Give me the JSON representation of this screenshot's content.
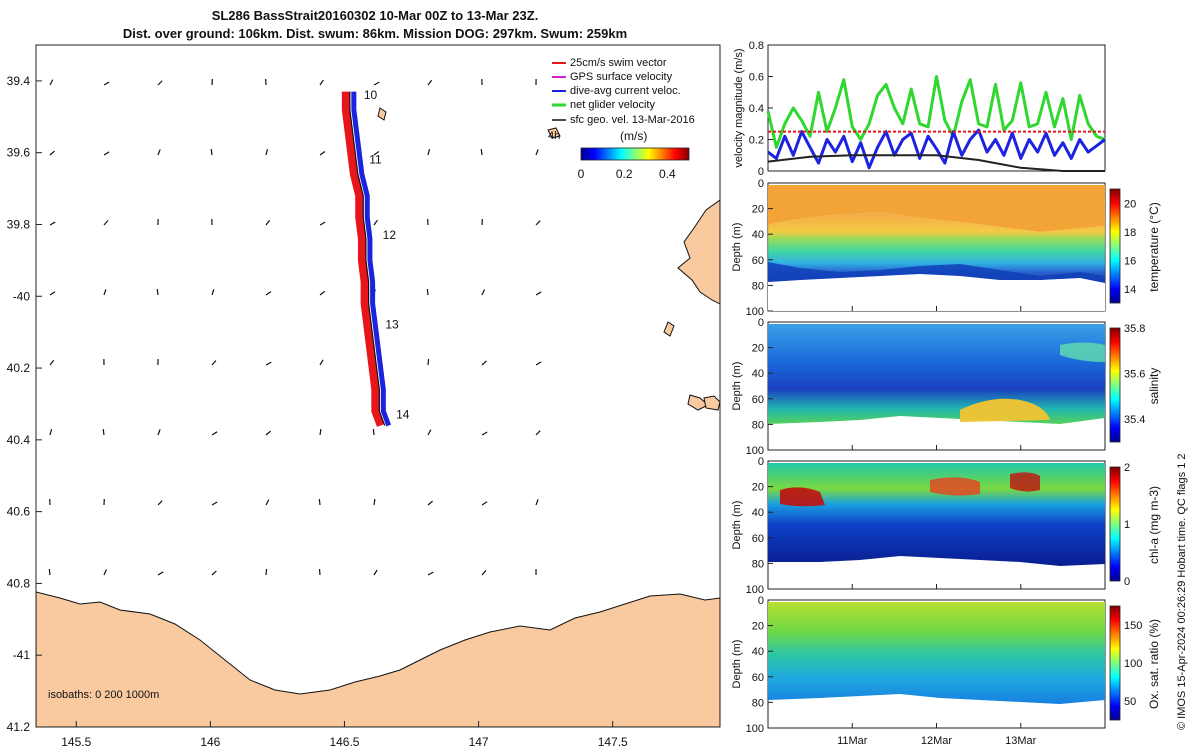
{
  "title_line1": "SL286 BassStrait20160302 10-Mar 00Z to 13-Mar 23Z.",
  "title_line2": "Dist. over ground: 106km. Dist. swum: 86km. Mission DOG: 297km. Swum: 259km",
  "credit": "© IMOS 15-Apr-2024 00:26:29 Hobart time. QC flags 1  2",
  "colors": {
    "land": "#f9c9a0",
    "swim": "#e8151b",
    "gps": "#d81cd8",
    "current": "#1b22e0",
    "net": "#2ed82e",
    "geo": "#111111"
  },
  "chart_data": [
    {
      "type": "map",
      "xlim": [
        145.35,
        147.9
      ],
      "ylim": [
        -41.2,
        -39.3
      ],
      "x_ticks": [
        145.5,
        146,
        146.5,
        147,
        147.5
      ],
      "x_tick_labels": [
        "145.5",
        "146",
        "146.5",
        "147",
        "147.5"
      ],
      "y_ticks": [
        -39.4,
        -39.6,
        -39.8,
        -40,
        -40.2,
        -40.4,
        -40.6,
        -40.8,
        -41,
        -41.2
      ],
      "y_tick_labels": [
        "39.4",
        "39.6",
        "39.8",
        "-40",
        "40.2",
        "40.4",
        "40.6",
        "40.8",
        "-41",
        "41.2"
      ],
      "legend": [
        "25cm/s swim vector",
        "GPS surface velocity",
        "dive-avg current veloc.",
        "net glider velocity",
        "sfc geo. vel. 13-Mar-2016"
      ],
      "legend_placement": "top-right",
      "colorbar_label": "(m/s)",
      "colorbar_ticks": [
        "0",
        "0.2",
        "0.4"
      ],
      "colorbar_range": [
        0,
        0.5
      ],
      "inset_label": "4h",
      "isobaths_label": "isobaths: 0   200  1000m",
      "track_day_labels": [
        {
          "label": "10",
          "lon": 146.55,
          "lat": -39.45
        },
        {
          "label": "11",
          "lon": 146.57,
          "lat": -39.63
        },
        {
          "label": "12",
          "lon": 146.62,
          "lat": -39.84
        },
        {
          "label": "13",
          "lon": 146.63,
          "lat": -40.09
        },
        {
          "label": "14",
          "lon": 146.67,
          "lat": -40.34
        }
      ],
      "track": [
        [
          146.52,
          -39.43
        ],
        [
          146.52,
          -39.48
        ],
        [
          146.53,
          -39.54
        ],
        [
          146.54,
          -39.6
        ],
        [
          146.55,
          -39.66
        ],
        [
          146.57,
          -39.72
        ],
        [
          146.57,
          -39.78
        ],
        [
          146.58,
          -39.84
        ],
        [
          146.58,
          -39.9
        ],
        [
          146.59,
          -39.96
        ],
        [
          146.59,
          -40.02
        ],
        [
          146.6,
          -40.08
        ],
        [
          146.61,
          -40.14
        ],
        [
          146.62,
          -40.2
        ],
        [
          146.63,
          -40.26
        ],
        [
          146.63,
          -40.32
        ],
        [
          146.65,
          -40.36
        ]
      ]
    },
    {
      "type": "line",
      "ylabel": "velocity magnitude (m/s)",
      "ylim": [
        0,
        0.8
      ],
      "y_ticks": [
        "0",
        "0.2",
        "0.4",
        "0.6",
        "0.8"
      ],
      "x_range_days": [
        10.0,
        14.0
      ],
      "series": [
        {
          "color": "#2ed82e",
          "x": [
            10.0,
            10.1,
            10.2,
            10.3,
            10.4,
            10.5,
            10.6,
            10.7,
            10.8,
            10.9,
            11.0,
            11.1,
            11.2,
            11.3,
            11.4,
            11.5,
            11.6,
            11.7,
            11.8,
            11.9,
            12.0,
            12.1,
            12.2,
            12.3,
            12.4,
            12.5,
            12.6,
            12.7,
            12.8,
            12.9,
            13.0,
            13.1,
            13.2,
            13.3,
            13.4,
            13.5,
            13.6,
            13.7,
            13.8,
            13.9,
            14.0
          ],
          "y": [
            0.38,
            0.15,
            0.3,
            0.4,
            0.32,
            0.22,
            0.5,
            0.25,
            0.4,
            0.58,
            0.28,
            0.2,
            0.3,
            0.48,
            0.55,
            0.4,
            0.3,
            0.52,
            0.3,
            0.28,
            0.6,
            0.32,
            0.22,
            0.44,
            0.58,
            0.3,
            0.28,
            0.55,
            0.26,
            0.32,
            0.56,
            0.28,
            0.3,
            0.5,
            0.28,
            0.46,
            0.2,
            0.48,
            0.3,
            0.22,
            0.2
          ]
        },
        {
          "color": "#1b22e0",
          "x": [
            10.0,
            10.1,
            10.2,
            10.3,
            10.4,
            10.5,
            10.6,
            10.7,
            10.8,
            10.9,
            11.0,
            11.1,
            11.2,
            11.3,
            11.4,
            11.5,
            11.6,
            11.7,
            11.8,
            11.9,
            12.0,
            12.1,
            12.2,
            12.3,
            12.4,
            12.5,
            12.6,
            12.7,
            12.8,
            12.9,
            13.0,
            13.1,
            13.2,
            13.3,
            13.4,
            13.5,
            13.6,
            13.7,
            13.8,
            13.9,
            14.0
          ],
          "y": [
            0.12,
            0.08,
            0.22,
            0.1,
            0.25,
            0.15,
            0.05,
            0.2,
            0.12,
            0.22,
            0.06,
            0.18,
            0.02,
            0.15,
            0.25,
            0.1,
            0.2,
            0.24,
            0.08,
            0.22,
            0.14,
            0.05,
            0.25,
            0.1,
            0.2,
            0.26,
            0.12,
            0.2,
            0.1,
            0.24,
            0.08,
            0.2,
            0.12,
            0.24,
            0.1,
            0.18,
            0.08,
            0.2,
            0.12,
            0.16,
            0.2
          ]
        },
        {
          "color": "#e8151b",
          "x": [
            10.0,
            14.0
          ],
          "y": [
            0.25,
            0.25
          ]
        },
        {
          "color": "#222222",
          "x": [
            10.0,
            10.5,
            11.0,
            11.5,
            12.0,
            12.5,
            13.0,
            13.5,
            14.0
          ],
          "y": [
            0.06,
            0.09,
            0.1,
            0.1,
            0.1,
            0.07,
            0.02,
            0.0,
            0.0
          ]
        }
      ]
    },
    {
      "type": "heatmap",
      "ylabel": "Depth (m)",
      "colorbar_label": "temperature (°C)",
      "colorbar_ticks": [
        "20",
        "18",
        "16",
        "14"
      ],
      "colorbar_range": [
        13,
        21
      ],
      "ylim": [
        100,
        0
      ],
      "y_ticks": [
        "0",
        "20",
        "40",
        "60",
        "80",
        "100"
      ]
    },
    {
      "type": "heatmap",
      "ylabel": "Depth (m)",
      "colorbar_label": "salinity",
      "colorbar_ticks": [
        "35.8",
        "35.6",
        "35.4"
      ],
      "colorbar_range": [
        35.3,
        35.8
      ],
      "ylim": [
        100,
        0
      ],
      "y_ticks": [
        "0",
        "20",
        "40",
        "60",
        "80",
        "100"
      ]
    },
    {
      "type": "heatmap",
      "ylabel": "Depth (m)",
      "colorbar_label": "chl-a (mg m-3)",
      "colorbar_ticks": [
        "2",
        "1",
        "0"
      ],
      "colorbar_range": [
        0,
        2
      ],
      "ylim": [
        100,
        0
      ],
      "y_ticks": [
        "0",
        "20",
        "40",
        "60",
        "80",
        "100"
      ]
    },
    {
      "type": "heatmap",
      "ylabel": "Depth (m)",
      "colorbar_label": "Ox. sat. ratio (%)",
      "colorbar_ticks": [
        "150",
        "100",
        "50"
      ],
      "colorbar_range": [
        25,
        175
      ],
      "ylim": [
        100,
        0
      ],
      "y_ticks": [
        "0",
        "20",
        "40",
        "60",
        "80",
        "100"
      ],
      "x_ticks": [
        "11Mar",
        "12Mar",
        "13Mar"
      ]
    }
  ]
}
